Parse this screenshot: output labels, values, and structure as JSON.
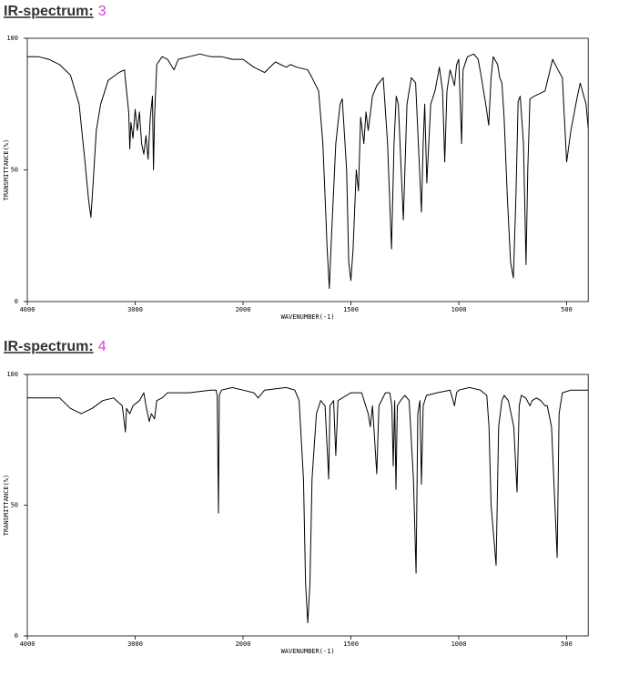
{
  "chart_data": [
    {
      "type": "line",
      "title": "IR-spectrum:",
      "number": "3",
      "x_label": "WAVENUMBER(-1)",
      "y_label": "TRANSMITTANCE(%)",
      "xlim": [
        4000,
        400
      ],
      "ylim": [
        0,
        100
      ],
      "xticks": [
        4000,
        3000,
        2000,
        1500,
        1000,
        500
      ],
      "yticks": [
        0,
        50,
        100
      ],
      "x": [
        4000,
        3900,
        3800,
        3700,
        3600,
        3520,
        3470,
        3430,
        3410,
        3390,
        3360,
        3320,
        3250,
        3150,
        3100,
        3080,
        3060,
        3050,
        3040,
        3020,
        3000,
        2980,
        2960,
        2940,
        2920,
        2900,
        2880,
        2860,
        2840,
        2830,
        2820,
        2800,
        2750,
        2700,
        2640,
        2600,
        2500,
        2400,
        2300,
        2200,
        2100,
        2000,
        1950,
        1900,
        1850,
        1800,
        1780,
        1750,
        1700,
        1680,
        1650,
        1630,
        1620,
        1610,
        1600,
        1590,
        1570,
        1550,
        1540,
        1520,
        1510,
        1500,
        1490,
        1475,
        1465,
        1455,
        1440,
        1430,
        1420,
        1400,
        1380,
        1350,
        1330,
        1312,
        1300,
        1290,
        1280,
        1257,
        1240,
        1220,
        1200,
        1173,
        1165,
        1158,
        1148,
        1130,
        1110,
        1090,
        1075,
        1065,
        1055,
        1040,
        1020,
        1010,
        1000,
        987,
        980,
        960,
        930,
        910,
        895,
        875,
        861,
        850,
        840,
        820,
        810,
        800,
        790,
        775,
        760,
        747,
        735,
        725,
        715,
        700,
        688,
        680,
        670,
        650,
        600,
        565,
        540,
        520,
        500,
        480,
        450,
        437,
        410,
        400
      ],
      "series": [
        {
          "color": "#000000",
          "values": [
            93,
            93,
            92,
            90,
            86,
            75,
            55,
            38,
            32,
            45,
            65,
            75,
            84,
            87,
            88,
            80,
            72,
            58,
            68,
            62,
            73,
            65,
            72,
            60,
            56,
            63,
            54,
            70,
            78,
            50,
            70,
            90,
            93,
            92,
            88,
            92,
            93,
            94,
            93,
            93,
            92,
            92,
            89,
            87,
            91,
            89,
            90,
            89,
            88,
            85,
            80,
            60,
            40,
            20,
            5,
            25,
            60,
            75,
            77,
            50,
            15,
            8,
            20,
            50,
            42,
            70,
            60,
            72,
            65,
            78,
            82,
            85,
            60,
            20,
            60,
            78,
            75,
            31,
            75,
            85,
            83,
            34,
            60,
            75,
            45,
            75,
            80,
            89,
            80,
            53,
            80,
            88,
            82,
            90,
            92,
            60,
            88,
            93,
            94,
            92,
            85,
            75,
            67,
            85,
            93,
            90,
            85,
            83,
            70,
            40,
            15,
            9,
            40,
            76,
            78,
            60,
            14,
            50,
            77,
            78,
            80,
            92,
            88,
            85,
            53,
            65,
            78,
            83,
            75,
            66
          ]
        }
      ]
    },
    {
      "type": "line",
      "title": "IR-spectrum:",
      "number": "4",
      "x_label": "WAVENUMBER(-1)",
      "y_label": "TRANSMITTANCE(%)",
      "xlim": [
        4000,
        400
      ],
      "ylim": [
        0,
        100
      ],
      "xticks": [
        4000,
        3000,
        2000,
        1500,
        1000,
        500
      ],
      "yticks": [
        0,
        50,
        100
      ],
      "x": [
        4000,
        3700,
        3600,
        3500,
        3400,
        3300,
        3200,
        3120,
        3090,
        3080,
        3050,
        3020,
        2960,
        2920,
        2900,
        2870,
        2850,
        2820,
        2800,
        2750,
        2700,
        2500,
        2300,
        2250,
        2240,
        2228,
        2220,
        2200,
        2100,
        2000,
        1950,
        1930,
        1900,
        1800,
        1760,
        1740,
        1720,
        1710,
        1700,
        1690,
        1680,
        1660,
        1640,
        1620,
        1603,
        1597,
        1580,
        1570,
        1560,
        1500,
        1450,
        1420,
        1410,
        1400,
        1390,
        1380,
        1370,
        1340,
        1320,
        1310,
        1304,
        1297,
        1291,
        1285,
        1270,
        1250,
        1230,
        1210,
        1198,
        1190,
        1180,
        1173,
        1165,
        1150,
        1100,
        1040,
        1020,
        1010,
        1000,
        950,
        900,
        870,
        860,
        850,
        827,
        815,
        800,
        790,
        770,
        745,
        730,
        720,
        710,
        690,
        670,
        660,
        640,
        620,
        600,
        590,
        570,
        544,
        535,
        520,
        480,
        400
      ],
      "series": [
        {
          "color": "#000000",
          "values": [
            91,
            91,
            87,
            85,
            87,
            90,
            91,
            88,
            78,
            87,
            85,
            88,
            90,
            93,
            88,
            82,
            85,
            83,
            90,
            91,
            93,
            93,
            94,
            94,
            92,
            47,
            92,
            94,
            95,
            94,
            93,
            91,
            94,
            95,
            94,
            90,
            60,
            20,
            5,
            20,
            60,
            85,
            90,
            88,
            60,
            88,
            90,
            69,
            90,
            93,
            93,
            85,
            80,
            88,
            75,
            62,
            88,
            93,
            93,
            88,
            65,
            90,
            56,
            88,
            90,
            92,
            90,
            60,
            24,
            85,
            90,
            58,
            88,
            92,
            93,
            94,
            88,
            93,
            94,
            95,
            94,
            92,
            80,
            50,
            27,
            80,
            90,
            92,
            90,
            80,
            55,
            88,
            92,
            91,
            88,
            90,
            91,
            90,
            88,
            88,
            80,
            30,
            85,
            93,
            94,
            94
          ]
        }
      ]
    }
  ]
}
